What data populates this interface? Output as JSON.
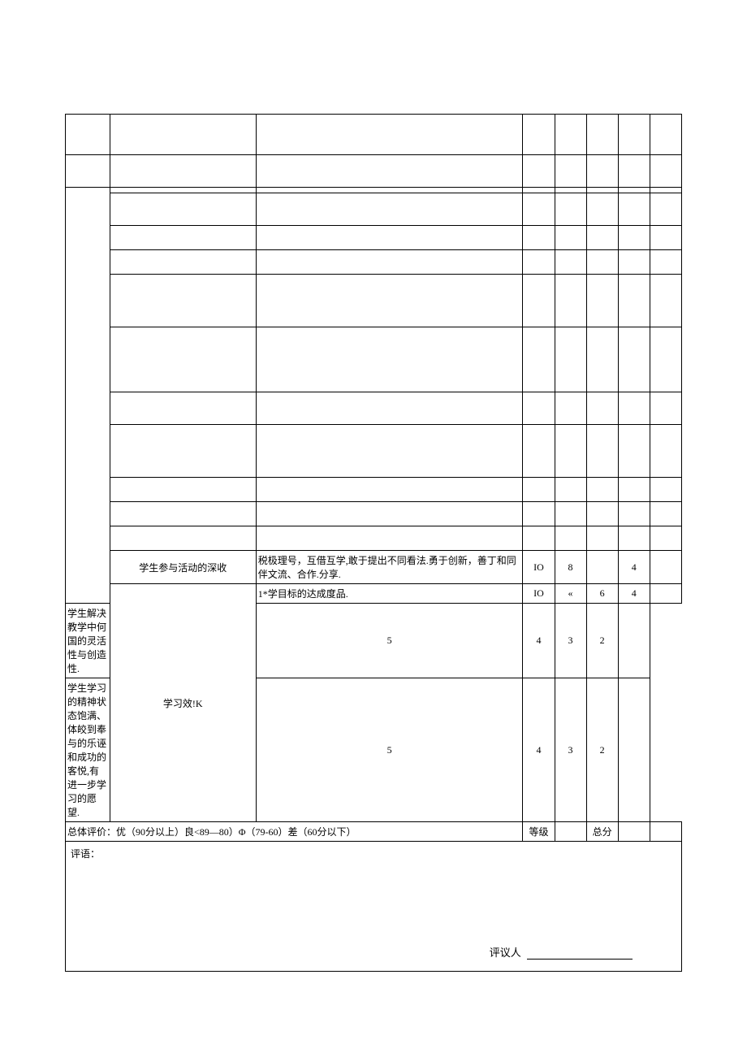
{
  "rows": {
    "r1": {
      "label": "学生参与活动的深收",
      "desc": "税极理号，互借互学,敢于提出不同看法.勇于创新，善丁和同伴文流、合作.分享.",
      "s1": "IO",
      "s2": "8",
      "s3": "",
      "s4": "4"
    },
    "r2": {
      "labelGroup": "学习效!K",
      "desc": "1*学目标的达成度品.",
      "s1": "IO",
      "s2": "«",
      "s3": "6",
      "s4": "4"
    },
    "r3": {
      "desc": "学生解决教学中何国的灵活性与创造性.",
      "s1": "5",
      "s2": "4",
      "s3": "3",
      "s4": "2"
    },
    "r4": {
      "desc": "学生学习的精神状态饱满、体皎到奉与的乐诬和成功的客悦,有进一步学习的愿望.",
      "s1": "5",
      "s2": "4",
      "s3": "3",
      "s4": "2"
    }
  },
  "summary": {
    "label": "总体评价：优（90分以上）良<89—80）Φ（79-60）差（60分以下）",
    "col1": "等级",
    "col2": "总分"
  },
  "comment": {
    "label": "评语：",
    "reviewer": "评议人"
  }
}
